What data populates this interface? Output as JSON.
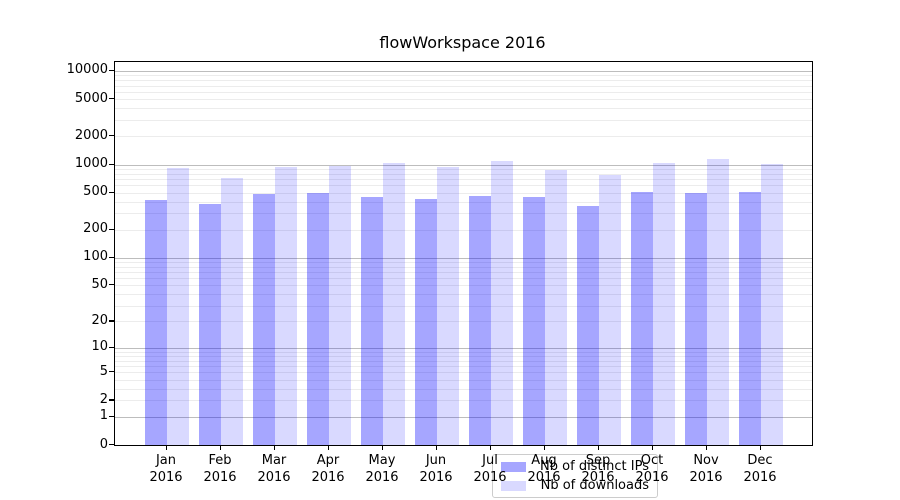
{
  "chart_data": {
    "type": "bar",
    "title": "flowWorkspace 2016",
    "categories": [
      "Jan",
      "Feb",
      "Mar",
      "Apr",
      "May",
      "Jun",
      "Jul",
      "Aug",
      "Sep",
      "Oct",
      "Nov",
      "Dec"
    ],
    "year": "2016",
    "series": [
      {
        "name": "Nb of distinct IPs",
        "color": "rgba(0,0,255,0.35)",
        "color_hex": "#a6a6ff",
        "values": [
          420,
          375,
          480,
          490,
          450,
          425,
          460,
          450,
          360,
          505,
          490,
          505
        ]
      },
      {
        "name": "Nb of downloads",
        "color": "rgba(0,0,255,0.15)",
        "color_hex": "#d9d9ff",
        "values": [
          910,
          715,
          940,
          960,
          1050,
          940,
          1100,
          870,
          770,
          1035,
          1140,
          1010
        ]
      }
    ],
    "yscale": "log1p",
    "yticks": [
      0,
      1,
      2,
      5,
      10,
      20,
      50,
      100,
      200,
      500,
      1000,
      2000,
      5000,
      10000
    ],
    "ytick_major_gridlines": [
      1,
      10,
      100,
      1000,
      10000
    ],
    "ylim": [
      0,
      12500
    ],
    "grid": "both",
    "legend_position": "lower center",
    "grid_major_color": "#bdbdbd",
    "grid_minor_color": "#ececec"
  }
}
